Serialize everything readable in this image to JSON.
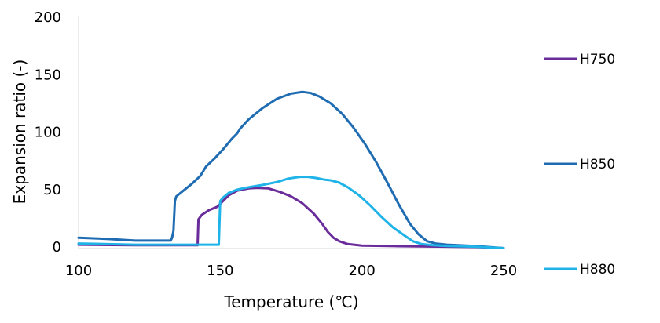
{
  "chart_data": {
    "type": "line",
    "xlabel": "Temperature (℃)",
    "ylabel": "Expansion ratio (-)",
    "xlim": [
      100,
      250
    ],
    "ylim": [
      0,
      200
    ],
    "xticks": [
      "100",
      "150",
      "200",
      "250"
    ],
    "yticks": [
      "0",
      "50",
      "100",
      "150",
      "200"
    ],
    "grid": false,
    "legend_position": "right",
    "series": [
      {
        "name": "H750",
        "color": "#6a2c9a",
        "points": [
          [
            100,
            2
          ],
          [
            120,
            1.5
          ],
          [
            142,
            1.5
          ],
          [
            142.3,
            24
          ],
          [
            143.5,
            28
          ],
          [
            146,
            32
          ],
          [
            149,
            35
          ],
          [
            151,
            40
          ],
          [
            153,
            45
          ],
          [
            156,
            49
          ],
          [
            160,
            51
          ],
          [
            163,
            51.5
          ],
          [
            167,
            51
          ],
          [
            171,
            48
          ],
          [
            175,
            44
          ],
          [
            179,
            38
          ],
          [
            183,
            29
          ],
          [
            186,
            20
          ],
          [
            188,
            13
          ],
          [
            190,
            8
          ],
          [
            192,
            5
          ],
          [
            195,
            2.5
          ],
          [
            200,
            1.2
          ],
          [
            210,
            0.8
          ],
          [
            220,
            0.5
          ],
          [
            230,
            0.3
          ],
          [
            240,
            0
          ],
          [
            250,
            -1
          ]
        ]
      },
      {
        "name": "H850",
        "color": "#1f6cb3",
        "points": [
          [
            100,
            8
          ],
          [
            110,
            7
          ],
          [
            120,
            5.5
          ],
          [
            132.5,
            5.5
          ],
          [
            133,
            8
          ],
          [
            133.5,
            14
          ],
          [
            134,
            40
          ],
          [
            134.5,
            44
          ],
          [
            137,
            49
          ],
          [
            140,
            55
          ],
          [
            143,
            62
          ],
          [
            145,
            70
          ],
          [
            148,
            77
          ],
          [
            151,
            85
          ],
          [
            154,
            94
          ],
          [
            156,
            99
          ],
          [
            157,
            103
          ],
          [
            160,
            111
          ],
          [
            165,
            121
          ],
          [
            170,
            129
          ],
          [
            175,
            133.5
          ],
          [
            179,
            135
          ],
          [
            182,
            134
          ],
          [
            185,
            131
          ],
          [
            189,
            125
          ],
          [
            193,
            116
          ],
          [
            197,
            104
          ],
          [
            201,
            90
          ],
          [
            205,
            74
          ],
          [
            209,
            56
          ],
          [
            213,
            37
          ],
          [
            217,
            20
          ],
          [
            220,
            11
          ],
          [
            223,
            5
          ],
          [
            226,
            3
          ],
          [
            230,
            2
          ],
          [
            240,
            0.8
          ],
          [
            250,
            -1
          ]
        ]
      },
      {
        "name": "H880",
        "color": "#1fb3e8",
        "points": [
          [
            100,
            3
          ],
          [
            120,
            2
          ],
          [
            149,
            2
          ],
          [
            149.5,
            2
          ],
          [
            150,
            40
          ],
          [
            151,
            43
          ],
          [
            153,
            47
          ],
          [
            156,
            50
          ],
          [
            160,
            52
          ],
          [
            165,
            54
          ],
          [
            170,
            56.5
          ],
          [
            174,
            59.5
          ],
          [
            178,
            61
          ],
          [
            181,
            61
          ],
          [
            184,
            60
          ],
          [
            187,
            58.5
          ],
          [
            189,
            58
          ],
          [
            192,
            56
          ],
          [
            195,
            52
          ],
          [
            199,
            45
          ],
          [
            203,
            36
          ],
          [
            207,
            26
          ],
          [
            211,
            17
          ],
          [
            215,
            10
          ],
          [
            218,
            5
          ],
          [
            221,
            2.5
          ],
          [
            225,
            1.5
          ],
          [
            230,
            0.8
          ],
          [
            240,
            0.3
          ],
          [
            250,
            -1
          ]
        ]
      }
    ]
  }
}
